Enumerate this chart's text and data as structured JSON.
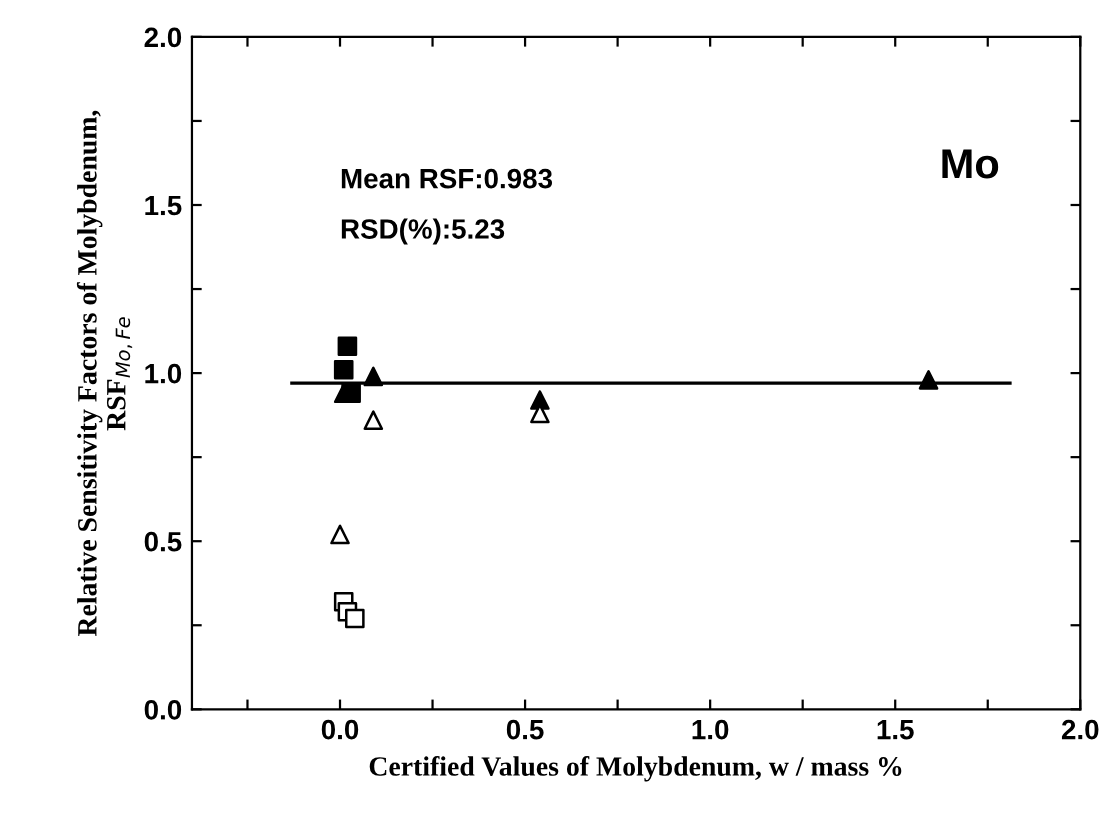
{
  "chart_data": {
    "type": "scatter",
    "xlabel": "Certified Values of Molybdenum, w / mass %",
    "ylabel": "Relative Sensitivity Factors of Molybdenum,\nRSF$_{Mo,Fe}$",
    "xlim": [
      -0.4,
      2.0
    ],
    "ylim": [
      0.0,
      2.0
    ],
    "xticks": [
      {
        "value": -0.25,
        "label": null
      },
      {
        "value": 0.0,
        "label": "0.0"
      },
      {
        "value": 0.25,
        "label": null
      },
      {
        "value": 0.5,
        "label": "0.5"
      },
      {
        "value": 0.75,
        "label": null
      },
      {
        "value": 1.0,
        "label": "1.0"
      },
      {
        "value": 1.25,
        "label": null
      },
      {
        "value": 1.5,
        "label": "1.5"
      },
      {
        "value": 1.75,
        "label": null
      },
      {
        "value": 2.0,
        "label": "2.0"
      }
    ],
    "yticks": [
      {
        "value": 0.0,
        "label": "0.0"
      },
      {
        "value": 0.25,
        "label": null
      },
      {
        "value": 0.5,
        "label": "0.5"
      },
      {
        "value": 0.75,
        "label": null
      },
      {
        "value": 1.0,
        "label": "1.0"
      },
      {
        "value": 1.25,
        "label": null
      },
      {
        "value": 1.5,
        "label": "1.5"
      },
      {
        "value": 1.75,
        "label": null
      },
      {
        "value": 2.0,
        "label": "2.0"
      }
    ],
    "grid": false,
    "legend": false,
    "series": [
      {
        "type": "line",
        "color": "#000000",
        "marker": "none",
        "x": [
          -0.13,
          1.81
        ],
        "values": [
          0.97,
          0.97
        ]
      },
      {
        "color": "#000000",
        "marker": "square",
        "x": [
          0.02,
          0.01,
          0.03
        ],
        "values": [
          1.08,
          1.01,
          0.94
        ]
      },
      {
        "color": "#000000",
        "marker": "triangle",
        "x": [
          0.01,
          0.09,
          0.54,
          1.59
        ],
        "values": [
          0.94,
          0.99,
          0.92,
          0.98
        ]
      },
      {
        "color": "#ffffff",
        "marker": "triangle",
        "x": [
          0.09,
          0.0,
          0.54
        ],
        "values": [
          0.86,
          0.52,
          0.88
        ]
      },
      {
        "color": "#ffffff",
        "marker": "square",
        "x": [
          0.01,
          0.02,
          0.04
        ],
        "values": [
          0.32,
          0.29,
          0.27
        ]
      }
    ],
    "annotations": [
      "Mean RSF:0.983",
      "RSD(%):5.23",
      "Mo"
    ]
  }
}
